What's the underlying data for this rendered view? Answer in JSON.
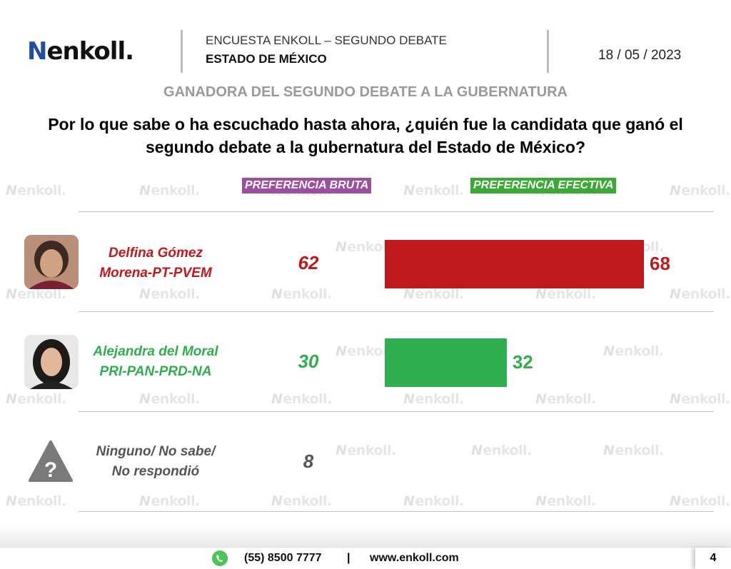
{
  "header": {
    "logo": "enkoll.",
    "survey": "ENCUESTA ENKOLL – SEGUNDO DEBATE",
    "state": "ESTADO DE MÉXICO",
    "date": "18 / 05 / 2023"
  },
  "subtitle": "GANADORA DEL SEGUNDO DEBATE A LA GUBERNATURA",
  "question_line1": "Por lo que sabe o ha escuchado hasta ahora, ¿quién fue la candidata que ganó el",
  "question_line2": "segundo debate a la gubernatura del Estado de México?",
  "watermark": "enkoll.",
  "colors": {
    "bruta": "#9b4f9e",
    "efectiva": "#3aaa35",
    "morena": "#c0191c",
    "pri": "#2fae4f",
    "none": "#555555"
  },
  "chart_data": {
    "type": "bar",
    "orientation": "horizontal",
    "title": "GANADORA DEL SEGUNDO DEBATE A LA GUBERNATURA",
    "categories": [
      {
        "name": "Delfina Gómez",
        "party": "Morena-PT-PVEM"
      },
      {
        "name": "Alejandra del Moral",
        "party": "PRI-PAN-PRD-NA"
      },
      {
        "name": "Ninguno/ No sabe/",
        "party": "No respondió"
      }
    ],
    "series": [
      {
        "name": "PREFERENCIA BRUTA",
        "values": [
          62,
          30,
          8
        ]
      },
      {
        "name": "PREFERENCIA EFECTIVA",
        "values": [
          68,
          32,
          null
        ]
      }
    ],
    "xlim": [
      0,
      68
    ]
  },
  "footer": {
    "phone": "(55) 8500 7777",
    "separator": "|",
    "website": "www.enkoll.com",
    "page": "4"
  }
}
